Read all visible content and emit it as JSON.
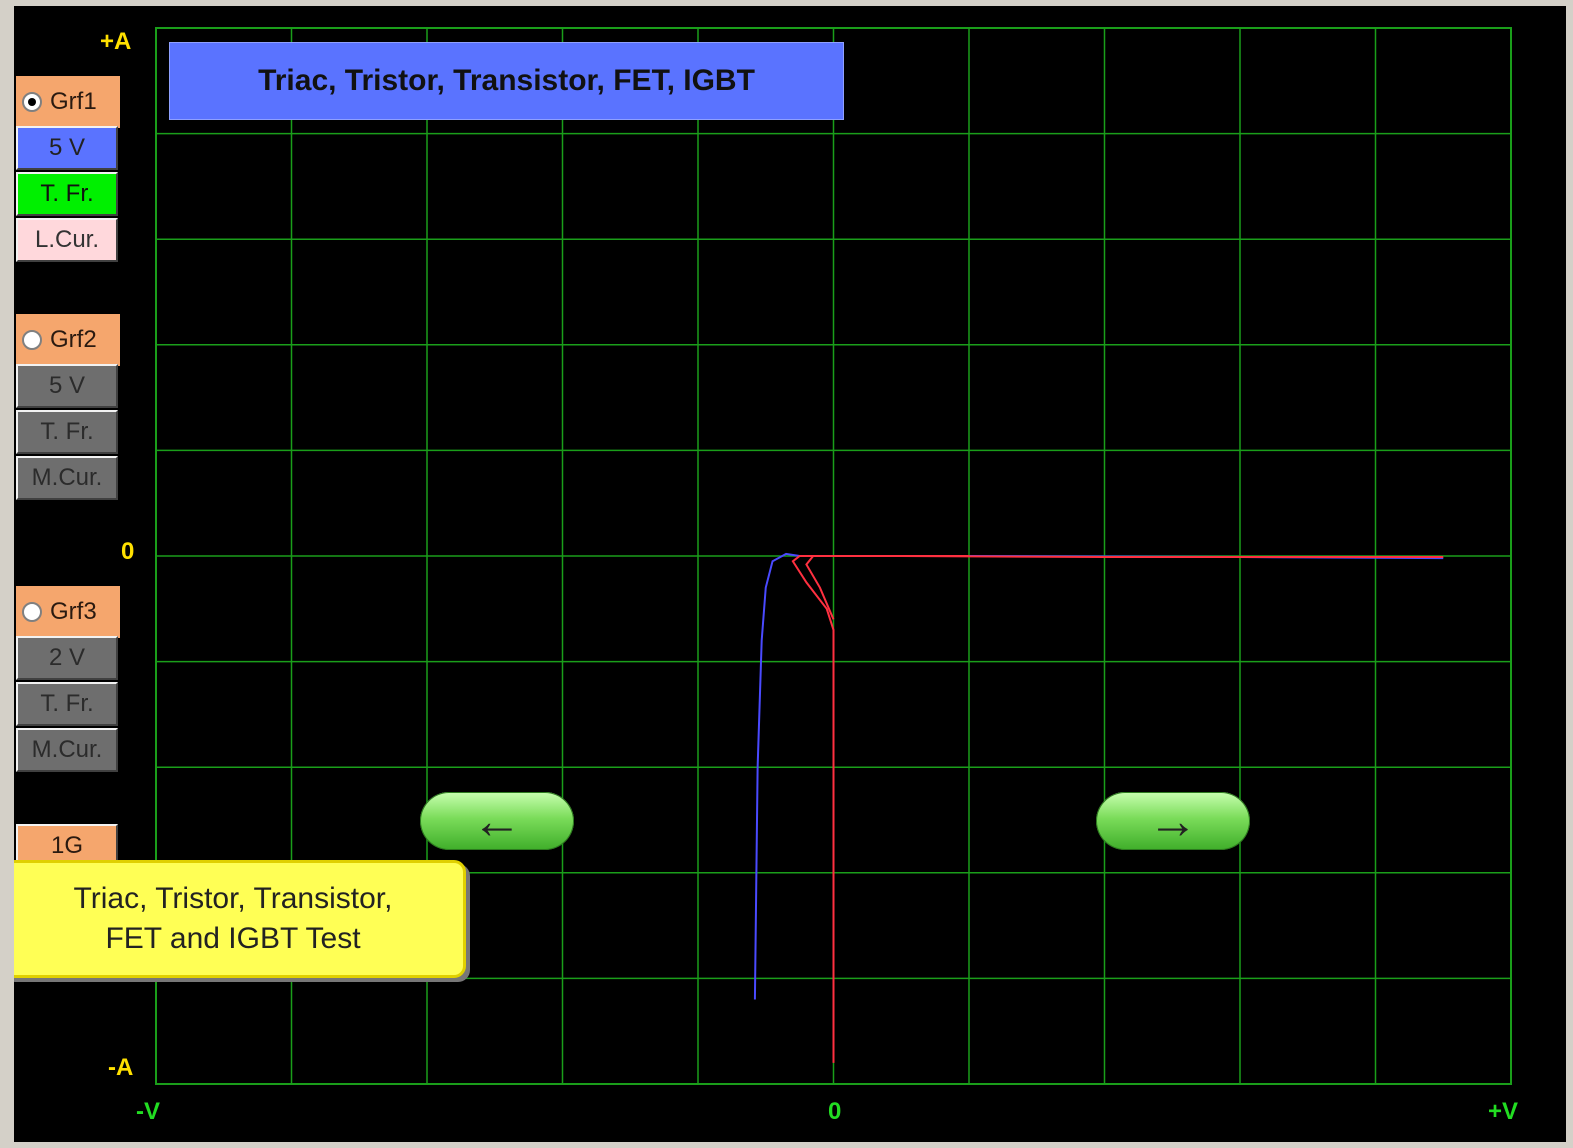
{
  "title": "Triac, Tristor, Transistor, FET, IGBT",
  "tooltip": {
    "line1": "Triac, Tristor, Transistor,",
    "line2": "FET and IGBT Test"
  },
  "axes": {
    "y_top": "+A",
    "y_zero": "0",
    "y_bottom": "-A",
    "x_left": "-V",
    "x_zero": "0",
    "x_right": "+V"
  },
  "graphs": [
    {
      "radio_label": "Grf1",
      "selected": true,
      "voltage": "5 V",
      "freq": "T. Fr.",
      "cursor": "L.Cur."
    },
    {
      "radio_label": "Grf2",
      "selected": false,
      "voltage": "5 V",
      "freq": "T. Fr.",
      "cursor": "M.Cur."
    },
    {
      "radio_label": "Grf3",
      "selected": false,
      "voltage": "2 V",
      "freq": "T. Fr.",
      "cursor": "M.Cur."
    }
  ],
  "gain_label": "1G",
  "nav": {
    "left_icon": "arrow-left-icon",
    "right_icon": "arrow-right-icon"
  },
  "colors": {
    "grid": "#1a9e1a",
    "axis_text_y": "#ffe000",
    "axis_text_x": "#22dd22",
    "trace_blue": "#4a4aff",
    "trace_red": "#ff3040",
    "title_bg": "#5a73ff",
    "tooltip_bg": "#ffff55"
  },
  "chart_data": {
    "type": "line",
    "grid": true,
    "x_divisions": 10,
    "y_divisions": 10,
    "xlim": [
      -5,
      5
    ],
    "ylim": [
      -5,
      5
    ],
    "series": [
      {
        "color": "#4a4aff",
        "points": [
          [
            -0.58,
            -4.2
          ],
          [
            -0.56,
            -2.0
          ],
          [
            -0.53,
            -0.8
          ],
          [
            -0.5,
            -0.3
          ],
          [
            -0.45,
            -0.05
          ],
          [
            -0.35,
            0.02
          ],
          [
            -0.25,
            0
          ],
          [
            1.0,
            0
          ],
          [
            3.0,
            -0.01
          ],
          [
            4.5,
            -0.02
          ]
        ]
      },
      {
        "color": "#ff3040",
        "points": [
          [
            0,
            -4.8
          ],
          [
            0,
            -0.7
          ],
          [
            -0.05,
            -0.5
          ],
          [
            -0.2,
            -0.25
          ],
          [
            -0.3,
            -0.05
          ],
          [
            -0.25,
            0
          ],
          [
            0.5,
            0
          ],
          [
            2.0,
            -0.01
          ],
          [
            4.5,
            -0.01
          ]
        ]
      },
      {
        "color": "#ff3040",
        "points": [
          [
            0,
            -0.6
          ],
          [
            -0.1,
            -0.3
          ],
          [
            -0.2,
            -0.08
          ],
          [
            -0.15,
            0
          ],
          [
            1.0,
            0
          ]
        ]
      }
    ]
  }
}
